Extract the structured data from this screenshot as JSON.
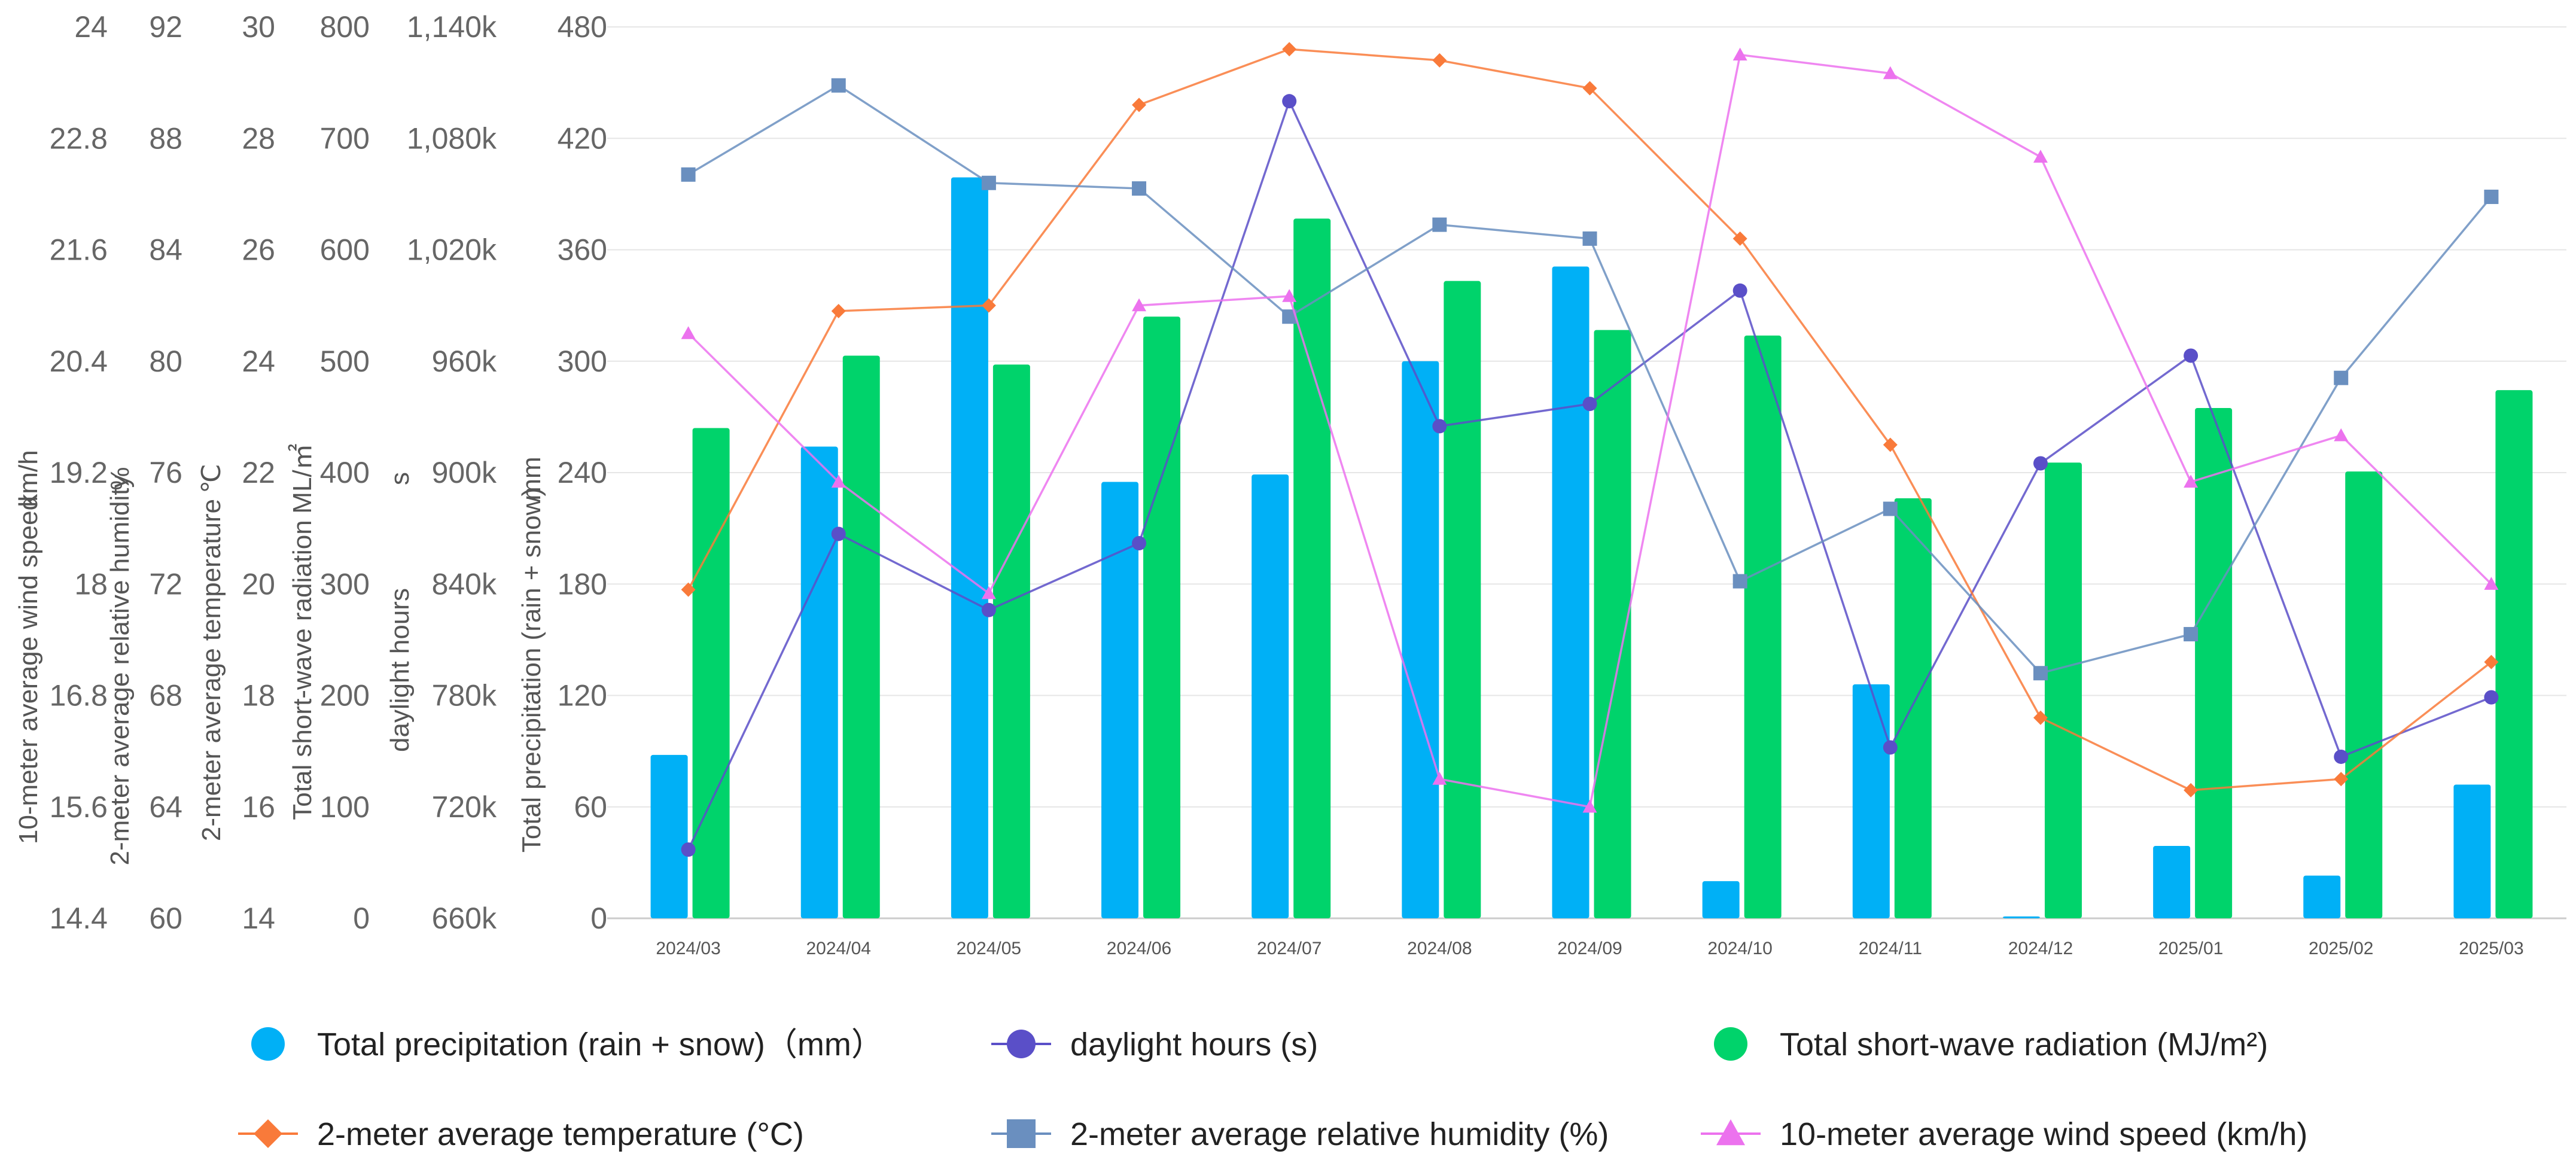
{
  "chart_data": {
    "type": "bar+line",
    "categories": [
      "2024/03",
      "2024/04",
      "2024/05",
      "2024/06",
      "2024/07",
      "2024/08",
      "2024/09",
      "2024/10",
      "2024/11",
      "2024/12",
      "2025/01",
      "2025/02",
      "2025/03"
    ],
    "axes": [
      {
        "id": "wind",
        "title": "10-meter average wind speed",
        "unit": "km/h",
        "min": 14.4,
        "max": 24,
        "ticks": [
          "14.4",
          "15.6",
          "16.8",
          "18",
          "19.2",
          "20.4",
          "21.6",
          "22.8",
          "24"
        ]
      },
      {
        "id": "humidity",
        "title": "2-meter average relative humidity",
        "unit": "%",
        "min": 60,
        "max": 92,
        "ticks": [
          "60",
          "64",
          "68",
          "72",
          "76",
          "80",
          "84",
          "88",
          "92"
        ]
      },
      {
        "id": "temp",
        "title": "2-meter average temperature",
        "unit": "℃",
        "min": 14,
        "max": 30,
        "ticks": [
          "14",
          "16",
          "18",
          "20",
          "22",
          "24",
          "26",
          "28",
          "30"
        ]
      },
      {
        "id": "radiation",
        "title": "Total short-wave radiation",
        "unit": "ML/㎡",
        "min": 0,
        "max": 800,
        "ticks": [
          "0",
          "100",
          "200",
          "300",
          "400",
          "500",
          "600",
          "700",
          "800"
        ]
      },
      {
        "id": "daylight",
        "title": "daylight hours",
        "unit": "s",
        "min": 660000,
        "max": 1140000,
        "ticks": [
          "660k",
          "720k",
          "780k",
          "840k",
          "900k",
          "960k",
          "1,020k",
          "1,080k",
          "1,140k"
        ]
      },
      {
        "id": "precip",
        "title": "Total precipitation (rain + snow)",
        "unit": "mm",
        "min": 0,
        "max": 480,
        "ticks": [
          "0",
          "60",
          "120",
          "180",
          "240",
          "300",
          "360",
          "420",
          "480"
        ]
      }
    ],
    "series": [
      {
        "name": "Total precipitation (rain + snow)（mm）",
        "kind": "bar",
        "axis": "precip",
        "color": "#00b0f6",
        "values": [
          88,
          254,
          399,
          235,
          239,
          300,
          351,
          20,
          126,
          1,
          39,
          23,
          72
        ]
      },
      {
        "name": "Total short-wave radiation (MJ/m²)",
        "kind": "bar",
        "axis": "radiation",
        "color": "#00d36b",
        "values": [
          440,
          505,
          497,
          540,
          628,
          572,
          528,
          523,
          377,
          409,
          458,
          401,
          474
        ]
      },
      {
        "name": "daylight hours (s)",
        "kind": "line",
        "axis": "daylight",
        "color": "#5a4fc8",
        "marker": "circle",
        "values": [
          697000,
          867000,
          826000,
          862000,
          1100000,
          925000,
          937000,
          998000,
          752000,
          905000,
          963000,
          747000,
          779000
        ]
      },
      {
        "name": "2-meter average temperature (°C)",
        "kind": "line",
        "axis": "temp",
        "color": "#f97a3a",
        "marker": "diamond",
        "values": [
          19.9,
          24.9,
          25.0,
          28.6,
          29.6,
          29.4,
          28.9,
          26.2,
          22.5,
          17.6,
          16.3,
          16.5,
          18.6
        ]
      },
      {
        "name": "2-meter average relative humidity (%)",
        "kind": "line",
        "axis": "humidity",
        "color": "#6a8fbf",
        "marker": "square",
        "values": [
          86.7,
          89.9,
          86.4,
          86.2,
          81.6,
          84.9,
          84.4,
          72.1,
          74.7,
          68.8,
          70.2,
          79.4,
          85.9
        ]
      },
      {
        "name": "10-meter average wind speed (km/h)",
        "kind": "line",
        "axis": "wind",
        "color": "#ec72ee",
        "marker": "triangle",
        "values": [
          20.7,
          19.1,
          17.9,
          21.0,
          21.1,
          15.9,
          15.6,
          23.7,
          23.5,
          22.6,
          19.1,
          19.6,
          18.0
        ]
      }
    ],
    "legend": {
      "position": "bottom"
    }
  }
}
